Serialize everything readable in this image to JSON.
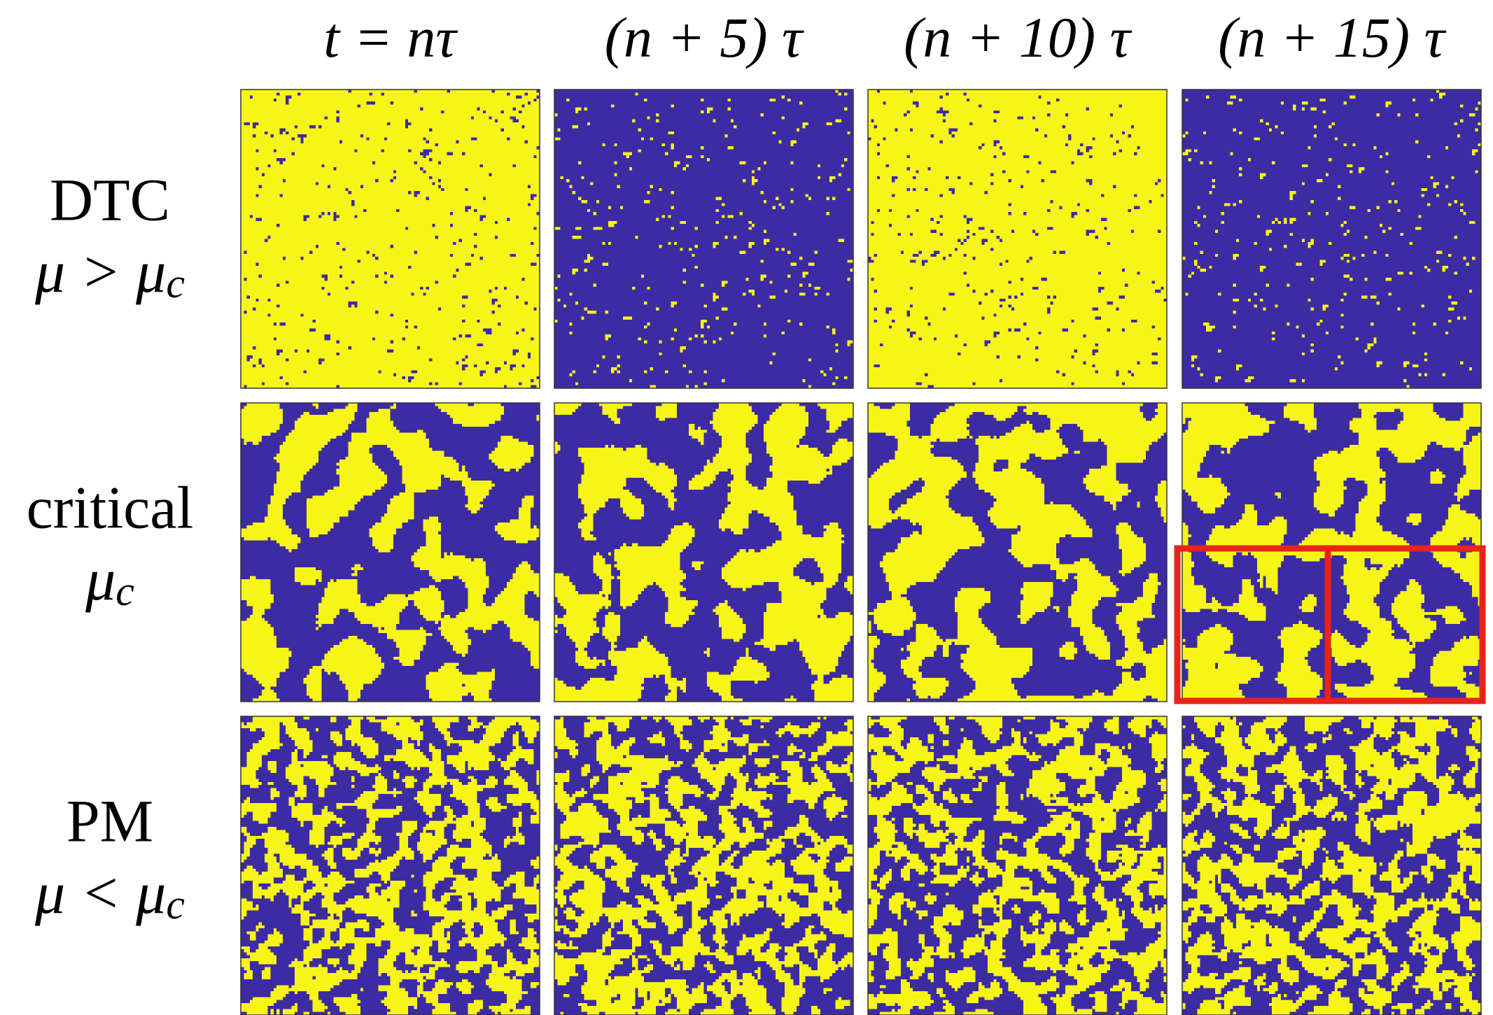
{
  "columns": [
    "t = nτ",
    "(n + 5) τ",
    "(n + 10) τ",
    "(n + 15) τ"
  ],
  "rows": [
    {
      "label": "DTC",
      "param": [
        "μ > μ",
        "c"
      ]
    },
    {
      "label": "critical",
      "param": [
        "μ",
        "c"
      ]
    },
    {
      "label": "PM",
      "param": [
        "μ < μ",
        "c"
      ]
    }
  ]
}
